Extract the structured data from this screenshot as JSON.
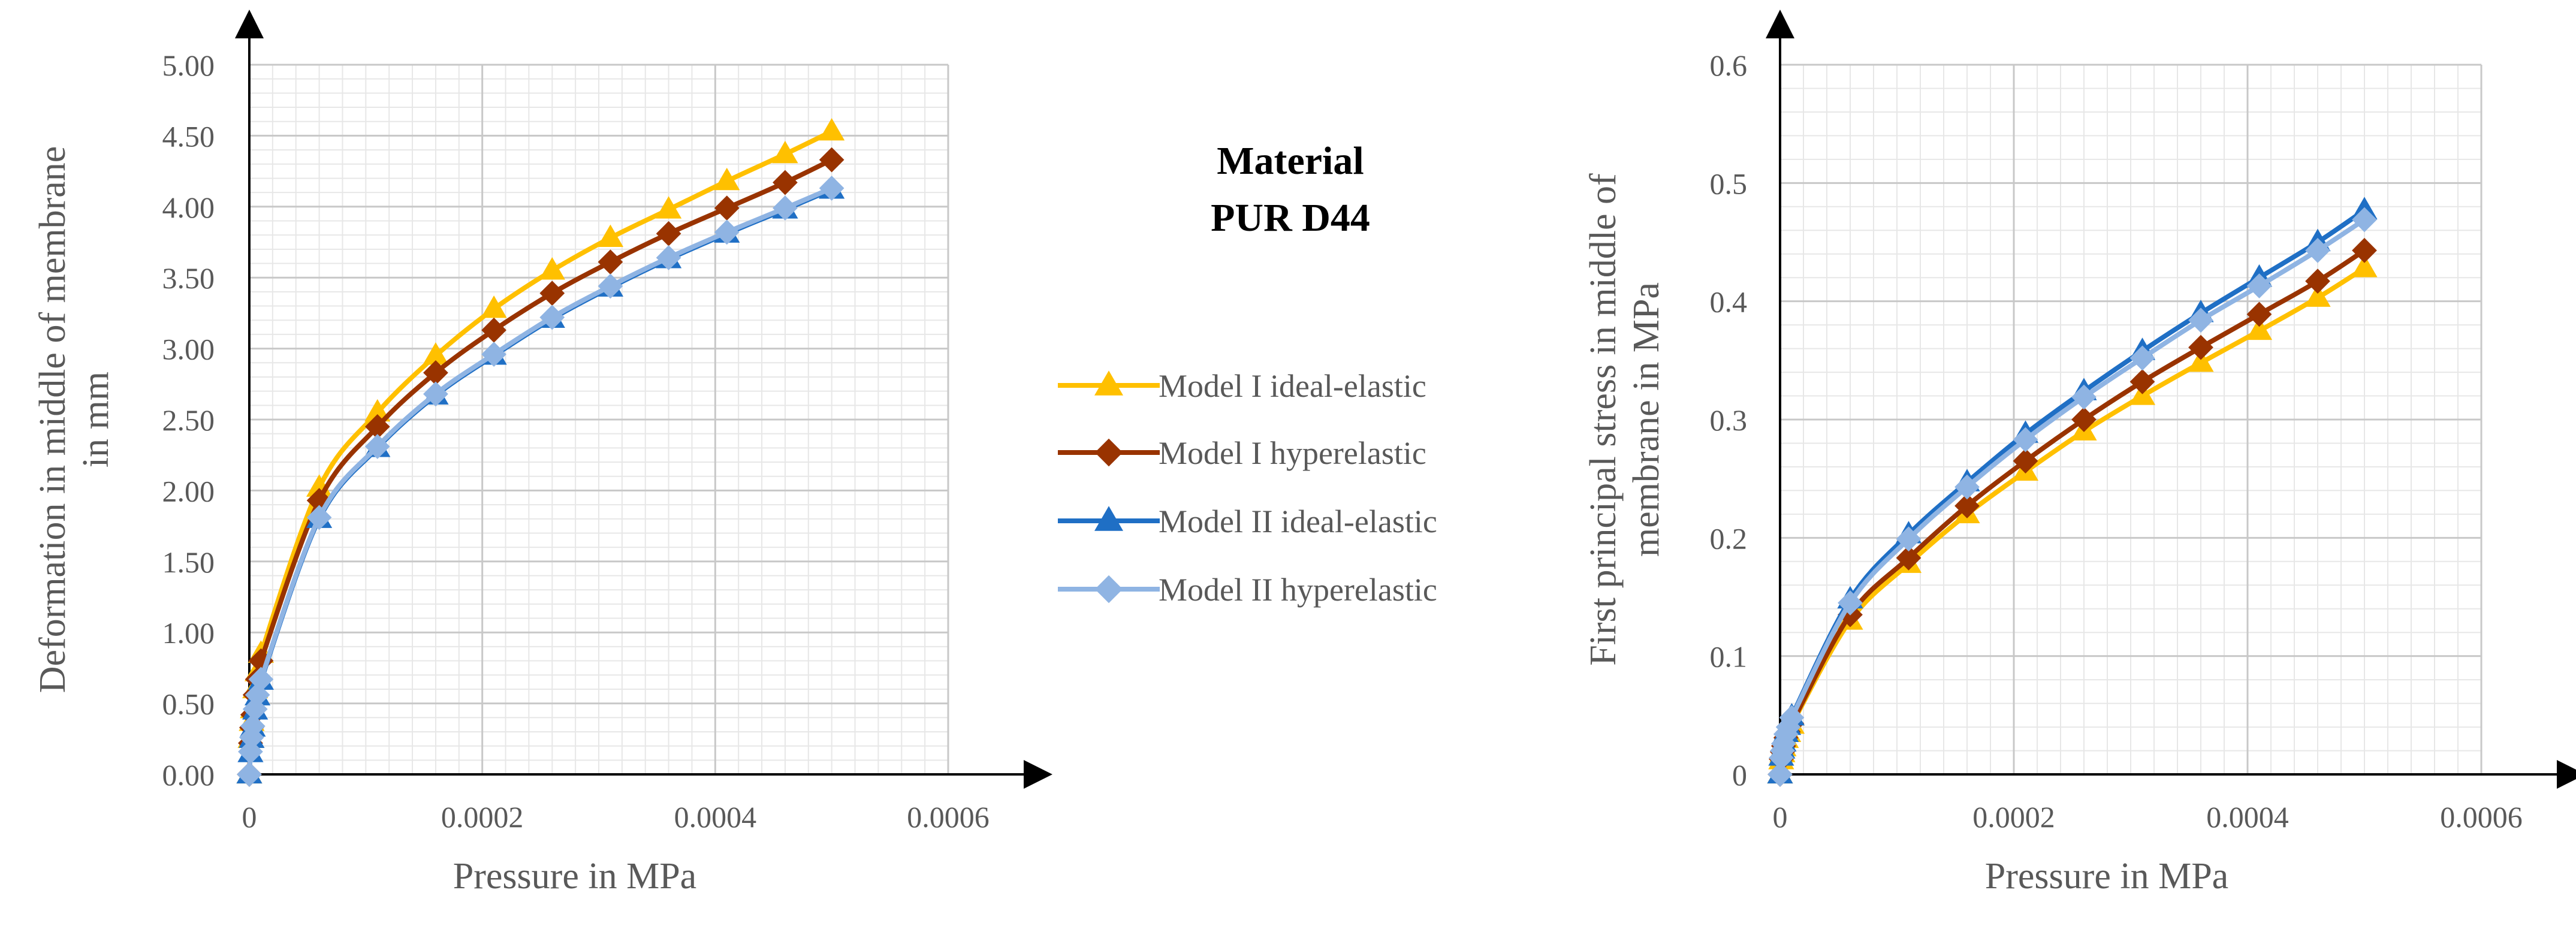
{
  "center_title": {
    "line1": "Material",
    "line2": "PUR D44"
  },
  "legend": {
    "entries": [
      {
        "name": "Model I ideal-elastic",
        "color": "#FFC000",
        "marker": "triangle"
      },
      {
        "name": "Model I hyperelastic",
        "color": "#993300",
        "marker": "diamond"
      },
      {
        "name": "Model II ideal-elastic",
        "color": "#1F6FC5",
        "marker": "triangle"
      },
      {
        "name": "Model II hyperelastic",
        "color": "#8FB4E3",
        "marker": "diamond"
      }
    ]
  },
  "chart_data": [
    {
      "type": "line",
      "title": "",
      "xlabel": "Pressure in MPa",
      "ylabel_lines": [
        "Deformation in middle of membrane",
        "in mm"
      ],
      "xlim": [
        0,
        0.0006
      ],
      "ylim": [
        0,
        5.0
      ],
      "x_ticks": [
        0,
        0.0002,
        0.0004,
        0.0006
      ],
      "x_tick_labels": [
        "0",
        "0.0002",
        "0.0004",
        "0.0006"
      ],
      "y_ticks": [
        0,
        0.5,
        1.0,
        1.5,
        2.0,
        2.5,
        3.0,
        3.5,
        4.0,
        4.5,
        5.0
      ],
      "y_tick_labels": [
        "0.00",
        "0.50",
        "1.00",
        "1.50",
        "2.00",
        "2.50",
        "3.00",
        "3.50",
        "4.00",
        "4.50",
        "5.00"
      ],
      "grid": true,
      "x": [
        0,
        1e-06,
        2e-06,
        3e-06,
        5e-06,
        7e-06,
        1e-05,
        6e-05,
        0.00011,
        0.00016,
        0.00021,
        0.00026,
        0.00031,
        0.00036,
        0.00041,
        0.00046,
        0.0005
      ],
      "series": [
        {
          "name": "Model I ideal-elastic",
          "values": [
            0,
            0.25,
            0.37,
            0.46,
            0.6,
            0.72,
            0.85,
            2.02,
            2.55,
            2.95,
            3.28,
            3.55,
            3.78,
            3.98,
            4.18,
            4.37,
            4.53
          ]
        },
        {
          "name": "Model I hyperelastic",
          "values": [
            0,
            0.22,
            0.33,
            0.42,
            0.56,
            0.67,
            0.8,
            1.93,
            2.45,
            2.83,
            3.13,
            3.39,
            3.61,
            3.81,
            3.99,
            4.17,
            4.33
          ]
        },
        {
          "name": "Model II ideal-elastic",
          "values": [
            0,
            0.15,
            0.25,
            0.33,
            0.45,
            0.55,
            0.66,
            1.8,
            2.3,
            2.67,
            2.95,
            3.21,
            3.43,
            3.63,
            3.81,
            3.98,
            4.12
          ]
        },
        {
          "name": "Model II hyperelastic",
          "values": [
            0,
            0.16,
            0.26,
            0.34,
            0.46,
            0.56,
            0.67,
            1.81,
            2.31,
            2.68,
            2.96,
            3.22,
            3.44,
            3.64,
            3.82,
            3.99,
            4.13
          ]
        }
      ]
    },
    {
      "type": "line",
      "title": "",
      "xlabel": "Pressure in MPa",
      "ylabel_lines": [
        "First principal stress in middle of",
        "membrane in MPa"
      ],
      "xlim": [
        0,
        0.0006
      ],
      "ylim": [
        0,
        0.6
      ],
      "x_ticks": [
        0,
        0.0002,
        0.0004,
        0.0006
      ],
      "x_tick_labels": [
        "0",
        "0.0002",
        "0.0004",
        "0.0006"
      ],
      "y_ticks": [
        0,
        0.1,
        0.2,
        0.3,
        0.4,
        0.5,
        0.6
      ],
      "y_tick_labels": [
        "0",
        "0.1",
        "0.2",
        "0.3",
        "0.4",
        "0.5",
        "0.6"
      ],
      "grid": true,
      "x": [
        0,
        1e-06,
        2e-06,
        3e-06,
        5e-06,
        7e-06,
        1e-05,
        6e-05,
        0.00011,
        0.00016,
        0.00021,
        0.00026,
        0.00031,
        0.00036,
        0.00041,
        0.00046,
        0.0005
      ],
      "series": [
        {
          "name": "Model I ideal-elastic",
          "values": [
            0,
            0.012,
            0.018,
            0.023,
            0.03,
            0.035,
            0.042,
            0.13,
            0.178,
            0.22,
            0.256,
            0.29,
            0.32,
            0.348,
            0.375,
            0.403,
            0.428
          ]
        },
        {
          "name": "Model I hyperelastic",
          "values": [
            0,
            0.013,
            0.019,
            0.024,
            0.031,
            0.036,
            0.043,
            0.135,
            0.183,
            0.227,
            0.265,
            0.3,
            0.332,
            0.361,
            0.389,
            0.417,
            0.443
          ]
        },
        {
          "name": "Model II ideal-elastic",
          "values": [
            0,
            0.015,
            0.021,
            0.027,
            0.035,
            0.041,
            0.049,
            0.148,
            0.203,
            0.247,
            0.288,
            0.324,
            0.358,
            0.39,
            0.42,
            0.45,
            0.477
          ]
        },
        {
          "name": "Model II hyperelastic",
          "values": [
            0,
            0.014,
            0.02,
            0.026,
            0.034,
            0.04,
            0.048,
            0.145,
            0.199,
            0.243,
            0.283,
            0.319,
            0.352,
            0.384,
            0.413,
            0.443,
            0.469
          ]
        }
      ]
    }
  ]
}
